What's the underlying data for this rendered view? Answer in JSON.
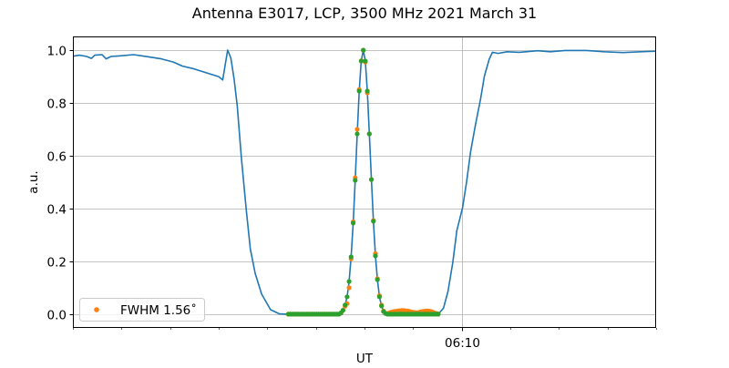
{
  "chart_data": {
    "type": "line",
    "title": "Antenna E3017, LCP, 3500 MHz 2021 March 31",
    "xlabel": "UT",
    "ylabel": "a.u.",
    "xlim": [
      "06:02:00",
      "06:14:00"
    ],
    "ylim": [
      -0.052,
      1.052
    ],
    "x_major_ticks": [
      {
        "value": "06:10:00",
        "label": "06:10"
      }
    ],
    "x_minor_ticks": [
      "06:02:00",
      "06:03:00",
      "06:04:00",
      "06:05:00",
      "06:06:00",
      "06:07:00",
      "06:08:00",
      "06:09:00",
      "06:11:00",
      "06:12:00",
      "06:13:00",
      "06:14:00"
    ],
    "y_ticks": [
      0.0,
      0.2,
      0.4,
      0.6,
      0.8,
      1.0
    ],
    "y_tick_labels": [
      "0.0",
      "0.2",
      "0.4",
      "0.6",
      "0.8",
      "1.0"
    ],
    "grid": {
      "horizontal": true,
      "vertical": "major x ticks only"
    },
    "legend": {
      "placement": "lower-left",
      "entries": [
        {
          "label": "FWHM 1.56˚",
          "series": "orange"
        }
      ]
    },
    "colors": {
      "line": "#1f77b4",
      "orange": "#ff7f0e",
      "green": "#2ca02c",
      "grid": "#b0b0b0"
    },
    "line": {
      "x": [
        "06:02:00",
        "06:02:08",
        "06:02:17",
        "06:02:23",
        "06:02:27",
        "06:02:36",
        "06:02:41",
        "06:02:47",
        "06:03:00",
        "06:03:15",
        "06:03:28",
        "06:03:49",
        "06:04:04",
        "06:04:15",
        "06:04:30",
        "06:04:45",
        "06:05:00",
        "06:05:05",
        "06:05:11",
        "06:05:15",
        "06:05:19",
        "06:05:23",
        "06:05:28",
        "06:05:34",
        "06:05:39",
        "06:05:45",
        "06:05:53",
        "06:06:04",
        "06:06:15",
        "06:06:26",
        "06:07:26",
        "06:07:28.5",
        "06:07:31",
        "06:07:33.5",
        "06:07:36",
        "06:07:38.5",
        "06:07:41",
        "06:07:43.5",
        "06:07:46",
        "06:07:48.5",
        "06:07:51",
        "06:07:53.5",
        "06:07:56",
        "06:07:58.5",
        "06:08:01",
        "06:08:03.5",
        "06:08:06",
        "06:08:08.5",
        "06:08:11",
        "06:08:13.5",
        "06:08:16",
        "06:08:18.5",
        "06:08:21",
        "06:08:23.5",
        "06:08:26",
        "06:08:28.5",
        "06:09:31",
        "06:09:37.5",
        "06:09:43",
        "06:09:49",
        "06:09:54",
        "06:10:01",
        "06:10:06",
        "06:10:11",
        "06:10:17",
        "06:10:23",
        "06:10:28",
        "06:10:34",
        "06:10:38",
        "06:10:45",
        "06:10:56",
        "06:11:11",
        "06:11:34",
        "06:11:49",
        "06:12:08",
        "06:12:34",
        "06:12:56",
        "06:13:19",
        "06:13:41",
        "06:14:00"
      ],
      "y": [
        0.977,
        0.981,
        0.976,
        0.969,
        0.981,
        0.983,
        0.967,
        0.976,
        0.979,
        0.983,
        0.977,
        0.967,
        0.955,
        0.94,
        0.929,
        0.914,
        0.9,
        0.887,
        1.0,
        0.971,
        0.891,
        0.787,
        0.592,
        0.397,
        0.247,
        0.155,
        0.076,
        0.017,
        0.001,
        0,
        0,
        0,
        0.005,
        0.015,
        0.035,
        0.066,
        0.124,
        0.217,
        0.345,
        0.507,
        0.683,
        0.845,
        0.959,
        1.0,
        0.959,
        0.845,
        0.683,
        0.51,
        0.352,
        0.221,
        0.131,
        0.066,
        0.031,
        0.01,
        0.003,
        0,
        0,
        0.023,
        0.086,
        0.196,
        0.316,
        0.403,
        0.5,
        0.615,
        0.718,
        0.81,
        0.902,
        0.966,
        0.992,
        0.988,
        0.994,
        0.992,
        0.998,
        0.994,
        0.999,
        0.999,
        0.994,
        0.991,
        0.994,
        0.996
      ]
    },
    "scatter_x": [
      "06:06:26",
      "06:06:28.5",
      "06:06:31",
      "06:06:33.5",
      "06:06:36",
      "06:06:38.5",
      "06:06:41",
      "06:06:43.5",
      "06:06:46",
      "06:06:48.5",
      "06:06:51",
      "06:06:53.5",
      "06:06:56",
      "06:06:58.5",
      "06:07:01",
      "06:07:03.5",
      "06:07:06",
      "06:07:08.5",
      "06:07:11",
      "06:07:13.5",
      "06:07:16",
      "06:07:18.5",
      "06:07:21",
      "06:07:23.5",
      "06:07:26",
      "06:07:28.5",
      "06:07:31",
      "06:07:33.5",
      "06:07:36",
      "06:07:38.5",
      "06:07:41",
      "06:07:43.5",
      "06:07:46",
      "06:07:48.5",
      "06:07:51",
      "06:07:53.5",
      "06:07:56",
      "06:07:58.5",
      "06:08:01",
      "06:08:03.5",
      "06:08:06",
      "06:08:08.5",
      "06:08:11",
      "06:08:13.5",
      "06:08:16",
      "06:08:18.5",
      "06:08:21",
      "06:08:23.5",
      "06:08:26",
      "06:08:28.5",
      "06:08:31",
      "06:08:33.5",
      "06:08:36",
      "06:08:38.5",
      "06:08:41",
      "06:08:43.5",
      "06:08:46",
      "06:08:48.5",
      "06:08:51",
      "06:08:53.5",
      "06:08:56",
      "06:08:58.5",
      "06:09:01",
      "06:09:03.5",
      "06:09:06",
      "06:09:08.5",
      "06:09:11",
      "06:09:13.5",
      "06:09:16",
      "06:09:18.5",
      "06:09:21",
      "06:09:23.5",
      "06:09:26",
      "06:09:28.5",
      "06:09:31"
    ],
    "series": [
      {
        "name": "FWHM 1.56˚",
        "color": "orange",
        "values": [
          0,
          0,
          0,
          0,
          0,
          0,
          0,
          0,
          0,
          0,
          0,
          0,
          0,
          0,
          0,
          0,
          0,
          0,
          0,
          0,
          0,
          0,
          0,
          0,
          0,
          0,
          0.005,
          0.015,
          0.03,
          0.04,
          0.1,
          0.21,
          0.35,
          0.517,
          0.7,
          0.851,
          0.96,
          1.0,
          0.955,
          0.838,
          0.683,
          0.51,
          0.355,
          0.23,
          0.135,
          0.07,
          0.035,
          0.012,
          0.004,
          0.003,
          0.006,
          0.008,
          0.01,
          0.011,
          0.012,
          0.013,
          0.014,
          0.014,
          0.013,
          0.012,
          0.01,
          0.008,
          0.007,
          0.006,
          0.006,
          0.008,
          0.01,
          0.011,
          0.012,
          0.012,
          0.011,
          0.009,
          0.006,
          0.003,
          0.001
        ]
      },
      {
        "color": "green",
        "values": [
          0,
          0,
          0,
          0,
          0,
          0,
          0,
          0,
          0,
          0,
          0,
          0,
          0,
          0,
          0,
          0,
          0,
          0,
          0,
          0,
          0,
          0,
          0,
          0,
          0,
          0,
          0.005,
          0.015,
          0.035,
          0.066,
          0.124,
          0.217,
          0.345,
          0.507,
          0.683,
          0.845,
          0.959,
          1.0,
          0.959,
          0.845,
          0.683,
          0.51,
          0.352,
          0.221,
          0.131,
          0.066,
          0.031,
          0.01,
          0.003,
          0,
          0,
          0,
          0,
          0,
          0,
          0,
          0,
          0,
          0,
          0,
          0,
          0,
          0,
          0,
          0,
          0,
          0,
          0,
          0,
          0,
          0,
          0,
          0,
          0,
          0
        ]
      }
    ]
  }
}
